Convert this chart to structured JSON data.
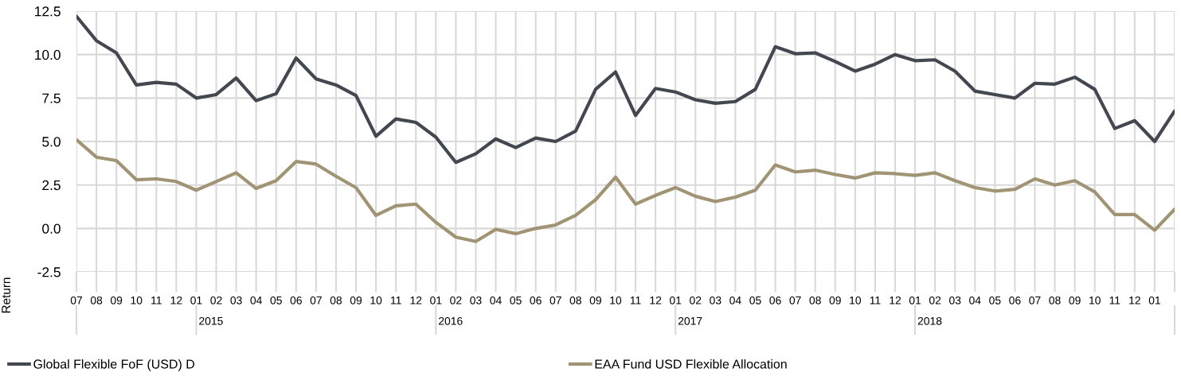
{
  "chart_data": {
    "type": "line",
    "ylabel": "Return",
    "categories": [
      "07",
      "08",
      "09",
      "10",
      "11",
      "12",
      "01",
      "02",
      "03",
      "04",
      "05",
      "06",
      "07",
      "08",
      "09",
      "10",
      "11",
      "12",
      "01",
      "02",
      "03",
      "04",
      "05",
      "06",
      "07",
      "08",
      "09",
      "10",
      "11",
      "12",
      "01",
      "02",
      "03",
      "04",
      "05",
      "06",
      "07",
      "08",
      "09",
      "10",
      "11",
      "12",
      "01",
      "02",
      "03",
      "04",
      "05",
      "06",
      "07",
      "08",
      "09",
      "10",
      "11",
      "12",
      "01",
      null
    ],
    "annotations": [
      "2015",
      "2016",
      "2017",
      "2018"
    ],
    "series": [
      {
        "name": "Global Flexible FoF (USD) D",
        "color": "#434850",
        "values": [
          12.2,
          10.8,
          10.1,
          8.25,
          8.4,
          8.3,
          7.5,
          7.7,
          8.65,
          7.35,
          7.75,
          9.8,
          8.6,
          8.25,
          7.65,
          5.3,
          6.3,
          6.1,
          5.25,
          3.8,
          4.3,
          5.15,
          4.65,
          5.2,
          5.0,
          5.6,
          8.0,
          9.0,
          6.5,
          8.05,
          7.85,
          7.4,
          7.2,
          7.3,
          8.0,
          10.45,
          10.05,
          10.1,
          9.6,
          9.05,
          9.45,
          10.0,
          9.65,
          9.7,
          9.05,
          7.9,
          7.7,
          7.5,
          8.35,
          8.3,
          8.7,
          8.0,
          5.75,
          6.2,
          5.0,
          6.75
        ]
      },
      {
        "name": "EAA Fund USD Flexible Allocation",
        "color": "#a09474",
        "values": [
          5.1,
          4.1,
          3.9,
          2.8,
          2.85,
          2.7,
          2.2,
          2.7,
          3.2,
          2.3,
          2.75,
          3.85,
          3.7,
          3.0,
          2.35,
          0.75,
          1.3,
          1.4,
          0.35,
          -0.5,
          -0.75,
          -0.05,
          -0.3,
          0.0,
          0.2,
          0.75,
          1.65,
          2.95,
          1.4,
          1.9,
          2.35,
          1.85,
          1.55,
          1.8,
          2.2,
          3.65,
          3.25,
          3.35,
          3.1,
          2.9,
          3.2,
          3.15,
          3.05,
          3.2,
          2.75,
          2.35,
          2.15,
          2.25,
          2.85,
          2.5,
          2.75,
          2.1,
          0.8,
          0.8,
          -0.1,
          1.1
        ]
      }
    ],
    "ylim": [
      -2.5,
      12.5
    ],
    "yticks": [
      {
        "value": -2.5,
        "label": "-2.5"
      },
      {
        "value": 0,
        "label": "0.0"
      },
      {
        "value": 2.5,
        "label": "2.5"
      },
      {
        "value": 5,
        "label": "5.0"
      },
      {
        "value": 7.5,
        "label": "7.5"
      },
      {
        "value": 10,
        "label": "10.0"
      },
      {
        "value": 12.5,
        "label": "12.5"
      }
    ],
    "grid": true,
    "legend": "bottom",
    "marker": "none",
    "line_style": "solid"
  }
}
